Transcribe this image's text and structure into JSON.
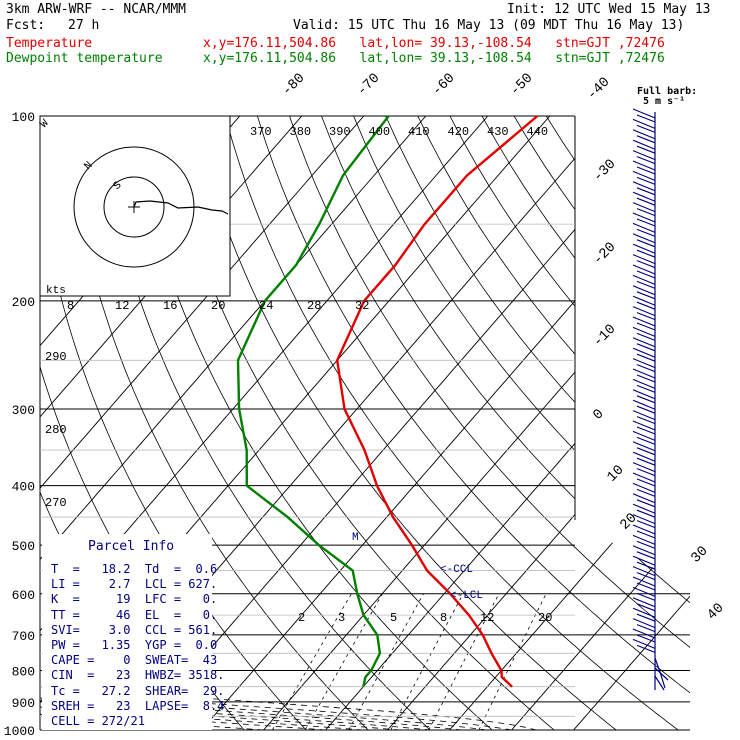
{
  "header": {
    "model": "3km ARW-WRF -- NCAR/MMM",
    "init": "Init: 12 UTC Wed 15 May 13",
    "fcst_label": "Fcst:",
    "fcst_value": "27 h",
    "valid": "Valid: 15 UTC Thu 16 May 13 (09 MDT Thu 16 May 13)",
    "temp_label": "Temperature",
    "temp_info": "x,y=176.11,504.86   lat,lon= 39.13,-108.54   stn=GJT ,72476",
    "dew_label": "Dewpoint temperature",
    "dew_info": "x,y=176.11,504.86   lat,lon= 39.13,-108.54   stn=GJT ,72476",
    "barb_note_1": "Full barb:",
    "barb_note_2": "5 m s⁻¹",
    "temp_color": "#e00000",
    "dew_color": "#008000",
    "barb_color": "#000080"
  },
  "chart_data": {
    "type": "line",
    "title": "Skew-T log-P",
    "pressure_ticks": [
      "100",
      "200",
      "300",
      "400",
      "500",
      "600",
      "700",
      "800",
      "900",
      "1000"
    ],
    "pressure_values": [
      100,
      200,
      300,
      400,
      500,
      600,
      700,
      800,
      900,
      1000
    ],
    "temperature_ticks_top": [
      "-80",
      "-70",
      "-60",
      "-50",
      "-40"
    ],
    "temperature_ticks_right": [
      "-30",
      "-20",
      "-10",
      "0",
      "10",
      "20",
      "30",
      "40"
    ],
    "theta_e_labels": [
      "370",
      "380",
      "390",
      "400",
      "410",
      "420",
      "430",
      "440"
    ],
    "theta_labels": [
      "290",
      "280",
      "270"
    ],
    "mixing_ratio_labels": [
      "2",
      "3",
      "5",
      "8",
      "12",
      "20"
    ],
    "hodograph": {
      "rings_label": "kts",
      "speed_labels": [
        "8",
        "12",
        "16",
        "20",
        "24",
        "28",
        "32"
      ],
      "letters": [
        "N",
        "S",
        "W"
      ]
    },
    "series": [
      {
        "name": "Temperature",
        "p": [
          100,
          125,
          150,
          175,
          200,
          250,
          300,
          350,
          400,
          450,
          500,
          550,
          600,
          650,
          700,
          750,
          800,
          820,
          850
        ],
        "t": [
          -52,
          -55,
          -55,
          -54,
          -54,
          -50,
          -42,
          -33,
          -26,
          -19,
          -12,
          -6,
          1,
          7,
          12,
          16,
          20,
          21,
          24
        ]
      },
      {
        "name": "Dewpoint temperature",
        "p": [
          100,
          125,
          150,
          175,
          200,
          250,
          300,
          350,
          400,
          450,
          500,
          550,
          600,
          650,
          700,
          750,
          800,
          820,
          850
        ],
        "t": [
          -76,
          -75,
          -72,
          -70,
          -70,
          -66,
          -59,
          -52,
          -47,
          -36,
          -27,
          -18,
          -14,
          -10,
          -5,
          -2,
          -1,
          -1,
          0
        ]
      }
    ],
    "xlim_degC": [
      -40,
      40
    ],
    "ylim_hPa": [
      1000,
      100
    ],
    "y_scale": "log",
    "skew_degC_per_decade_p": 70
  },
  "parcel_info": {
    "title": "Parcel Info",
    "rows": [
      "T  =   18.2  Td  =  0.6",
      "LI =    2.7  LCL = 627.",
      "K  =     19  LFC =   0.",
      "TT =     46  EL  =   0.",
      "SVI=    3.0  CCL = 561.",
      "PW =   1.35  YGP =  0.0",
      "CAPE =    0  SWEAT=  43",
      "CIN  =   23  HWBZ= 3518.",
      "Tc =   27.2  SHEAR=  29.",
      "SREH =   23  LAPSE=  8.4",
      "CELL = 272/21"
    ]
  },
  "annotations": {
    "ccl": "<-CCL",
    "lcl": "<-LCL",
    "m": "M"
  }
}
